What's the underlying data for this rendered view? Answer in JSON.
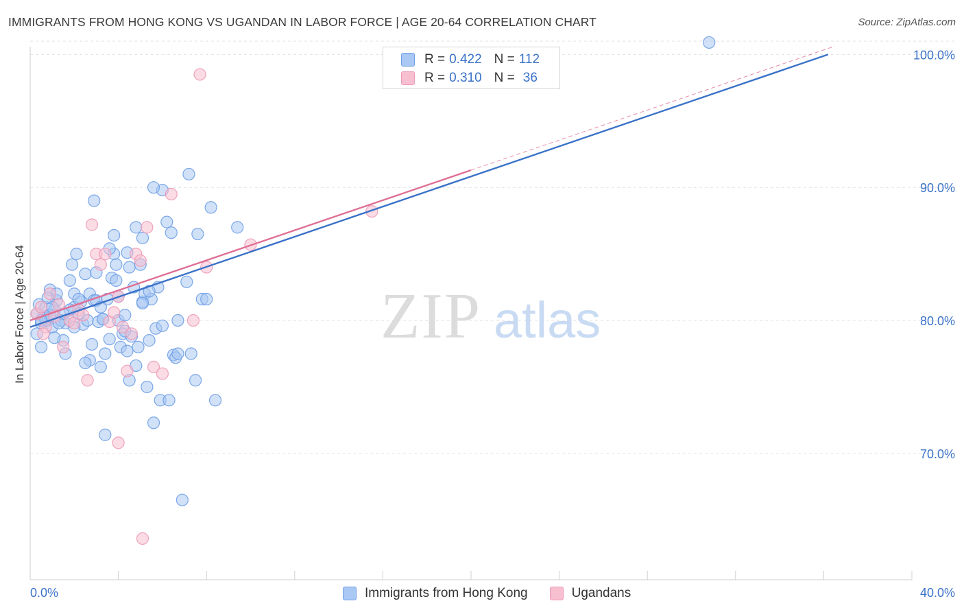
{
  "title": "IMMIGRANTS FROM HONG KONG VS UGANDAN IN LABOR FORCE | AGE 20-64 CORRELATION CHART",
  "source": "Source: ZipAtlas.com",
  "watermark": {
    "zip": "ZIP",
    "atlas": "atlas"
  },
  "colors": {
    "blue_fill": "#a9c8f3",
    "blue_stroke": "#6f9fe6",
    "blue_line": "#3a72c8",
    "pink_fill": "#f7bfd0",
    "pink_stroke": "#ec9ab6",
    "pink_line": "#e06f95",
    "grid": "#e2e2e2",
    "tick_label": "#3a72c8"
  },
  "stats": [
    {
      "r_label": "R =",
      "r_value": "0.422",
      "n_label": "N =",
      "n_value": "112"
    },
    {
      "r_label": "R =",
      "r_value": "0.310",
      "n_label": "N =",
      "n_value": "36"
    }
  ],
  "legend": [
    {
      "label": "Immigrants from Hong Kong"
    },
    {
      "label": "Ugandans"
    }
  ],
  "chart_data": {
    "type": "scatter",
    "ylabel": "In Labor Force | Age 20-64",
    "xlim": [
      0,
      40
    ],
    "ylim": [
      60.5,
      101
    ],
    "x_tick_labels": [
      "0.0%",
      "40.0%"
    ],
    "y_ticks": [
      100,
      90,
      80,
      70
    ],
    "y_tick_labels": [
      "100.0%",
      "90.0%",
      "80.0%",
      "70.0%"
    ],
    "grid": true,
    "legend_position": "bottom",
    "series": [
      {
        "name": "Immigrants from Hong Kong",
        "trend": {
          "x": [
            0,
            36.2
          ],
          "y": [
            79.5,
            100.0
          ]
        },
        "points": [
          [
            0.3,
            80.5
          ],
          [
            0.4,
            81.2
          ],
          [
            0.5,
            79.8
          ],
          [
            0.6,
            80.3
          ],
          [
            0.7,
            81.0
          ],
          [
            0.8,
            80.0
          ],
          [
            0.9,
            82.3
          ],
          [
            1.0,
            79.5
          ],
          [
            1.1,
            80.8
          ],
          [
            1.2,
            81.5
          ],
          [
            0.3,
            79.0
          ],
          [
            0.5,
            78.0
          ],
          [
            0.7,
            80.0
          ],
          [
            0.9,
            80.4
          ],
          [
            1.0,
            81.0
          ],
          [
            1.2,
            82.0
          ],
          [
            1.4,
            80.0
          ],
          [
            1.6,
            79.8
          ],
          [
            1.8,
            80.0
          ],
          [
            2.0,
            81.0
          ],
          [
            1.5,
            78.5
          ],
          [
            1.6,
            77.5
          ],
          [
            1.8,
            83.0
          ],
          [
            2.0,
            82.0
          ],
          [
            2.2,
            80.5
          ],
          [
            2.3,
            81.4
          ],
          [
            2.4,
            79.7
          ],
          [
            2.5,
            83.5
          ],
          [
            2.6,
            80.0
          ],
          [
            2.7,
            82.0
          ],
          [
            2.8,
            78.2
          ],
          [
            2.9,
            81.5
          ],
          [
            3.0,
            83.6
          ],
          [
            3.1,
            79.9
          ],
          [
            3.2,
            76.5
          ],
          [
            3.3,
            80.1
          ],
          [
            3.4,
            77.5
          ],
          [
            3.5,
            81.6
          ],
          [
            3.6,
            78.6
          ],
          [
            3.7,
            83.2
          ],
          [
            3.8,
            85.0
          ],
          [
            3.9,
            84.2
          ],
          [
            4.0,
            80.0
          ],
          [
            4.1,
            78.0
          ],
          [
            4.2,
            79.0
          ],
          [
            4.3,
            80.4
          ],
          [
            4.4,
            77.7
          ],
          [
            4.5,
            75.5
          ],
          [
            4.6,
            78.8
          ],
          [
            4.7,
            82.5
          ],
          [
            4.8,
            76.6
          ],
          [
            4.9,
            78.0
          ],
          [
            5.0,
            84.2
          ],
          [
            5.1,
            81.4
          ],
          [
            5.2,
            82.0
          ],
          [
            5.3,
            75.0
          ],
          [
            5.4,
            78.5
          ],
          [
            5.5,
            81.6
          ],
          [
            5.6,
            72.3
          ],
          [
            5.7,
            79.4
          ],
          [
            5.8,
            82.5
          ],
          [
            5.9,
            74.0
          ],
          [
            6.0,
            79.6
          ],
          [
            6.2,
            87.4
          ],
          [
            6.4,
            86.6
          ],
          [
            6.5,
            77.4
          ],
          [
            6.6,
            77.2
          ],
          [
            6.7,
            77.5
          ],
          [
            6.9,
            66.5
          ],
          [
            7.1,
            82.9
          ],
          [
            7.3,
            77.5
          ],
          [
            7.5,
            75.5
          ],
          [
            7.6,
            86.5
          ],
          [
            7.8,
            81.6
          ],
          [
            8.0,
            81.6
          ],
          [
            5.4,
            82.2
          ],
          [
            5.1,
            86.2
          ],
          [
            2.9,
            89.0
          ],
          [
            3.8,
            86.4
          ],
          [
            8.4,
            74.0
          ],
          [
            3.4,
            71.4
          ],
          [
            3.6,
            85.4
          ],
          [
            2.1,
            85.0
          ],
          [
            1.8,
            80.8
          ],
          [
            1.5,
            80.5
          ],
          [
            2.2,
            81.6
          ],
          [
            4.0,
            81.8
          ],
          [
            8.2,
            88.5
          ],
          [
            7.2,
            91.0
          ],
          [
            6.0,
            89.8
          ],
          [
            3.0,
            81.5
          ],
          [
            3.3,
            80.1
          ],
          [
            4.5,
            84.0
          ],
          [
            5.1,
            81.3
          ],
          [
            6.3,
            74.0
          ],
          [
            2.7,
            77.0
          ],
          [
            1.3,
            79.8
          ],
          [
            0.8,
            81.7
          ],
          [
            0.5,
            80.0
          ],
          [
            1.1,
            78.7
          ],
          [
            2.5,
            76.8
          ],
          [
            3.9,
            83.0
          ],
          [
            4.8,
            87.0
          ],
          [
            5.6,
            90.0
          ],
          [
            6.7,
            80.0
          ],
          [
            3.2,
            81.0
          ],
          [
            2.0,
            79.5
          ],
          [
            4.3,
            79.2
          ],
          [
            30.8,
            100.9
          ],
          [
            9.4,
            87.0
          ],
          [
            1.9,
            84.2
          ],
          [
            4.4,
            85.1
          ]
        ]
      },
      {
        "name": "Ugandans",
        "trend": {
          "x": [
            0,
            20.0
          ],
          "y": [
            80.0,
            91.3
          ]
        },
        "points": [
          [
            0.3,
            80.5
          ],
          [
            0.5,
            81.0
          ],
          [
            0.7,
            79.5
          ],
          [
            0.9,
            82.0
          ],
          [
            1.1,
            80.3
          ],
          [
            1.3,
            81.2
          ],
          [
            0.6,
            79.0
          ],
          [
            1.5,
            78.0
          ],
          [
            1.8,
            80.0
          ],
          [
            2.0,
            79.8
          ],
          [
            2.2,
            80.8
          ],
          [
            2.4,
            80.4
          ],
          [
            2.6,
            75.5
          ],
          [
            2.8,
            87.2
          ],
          [
            3.0,
            85.0
          ],
          [
            3.2,
            84.2
          ],
          [
            3.4,
            85.0
          ],
          [
            3.6,
            79.9
          ],
          [
            3.8,
            80.6
          ],
          [
            4.0,
            81.8
          ],
          [
            4.2,
            79.5
          ],
          [
            4.4,
            76.2
          ],
          [
            4.6,
            79.0
          ],
          [
            4.8,
            85.0
          ],
          [
            5.0,
            84.5
          ],
          [
            5.3,
            87.0
          ],
          [
            5.6,
            76.5
          ],
          [
            6.0,
            76.0
          ],
          [
            4.0,
            70.8
          ],
          [
            5.1,
            63.6
          ],
          [
            6.4,
            89.5
          ],
          [
            7.4,
            80.0
          ],
          [
            8.0,
            84.0
          ],
          [
            10.0,
            85.7
          ],
          [
            15.5,
            88.2
          ],
          [
            7.7,
            98.5
          ]
        ]
      }
    ]
  }
}
